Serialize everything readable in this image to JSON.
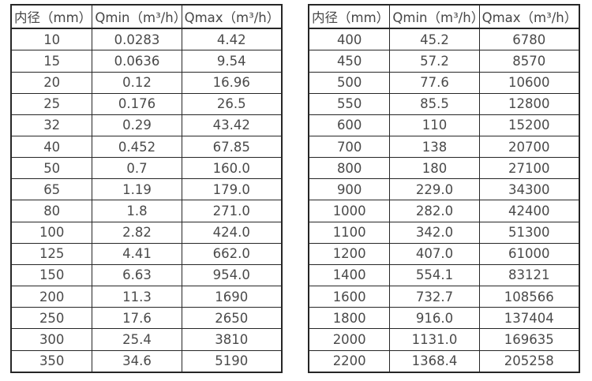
{
  "headers": {
    "diameter": "内径（mm）",
    "qmin": "Qmin（m³/h）",
    "qmax": "Qmax（m³/h）"
  },
  "tables": [
    {
      "name": "small-diameters",
      "rows": [
        [
          "10",
          "0.0283",
          "4.42"
        ],
        [
          "15",
          "0.0636",
          "9.54"
        ],
        [
          "20",
          "0.12",
          "16.96"
        ],
        [
          "25",
          "0.176",
          "26.5"
        ],
        [
          "32",
          "0.29",
          "43.42"
        ],
        [
          "40",
          "0.452",
          "67.85"
        ],
        [
          "50",
          "0.7",
          "160.0"
        ],
        [
          "65",
          "1.19",
          "179.0"
        ],
        [
          "80",
          "1.8",
          "271.0"
        ],
        [
          "100",
          "2.82",
          "424.0"
        ],
        [
          "125",
          "4.41",
          "662.0"
        ],
        [
          "150",
          "6.63",
          "954.0"
        ],
        [
          "200",
          "11.3",
          "1690"
        ],
        [
          "250",
          "17.6",
          "2650"
        ],
        [
          "300",
          "25.4",
          "3810"
        ],
        [
          "350",
          "34.6",
          "5190"
        ]
      ]
    },
    {
      "name": "large-diameters",
      "rows": [
        [
          "400",
          "45.2",
          "6780"
        ],
        [
          "450",
          "57.2",
          "8570"
        ],
        [
          "500",
          "77.6",
          "10600"
        ],
        [
          "550",
          "85.5",
          "12800"
        ],
        [
          "600",
          "110",
          "15200"
        ],
        [
          "700",
          "138",
          "20700"
        ],
        [
          "800",
          "180",
          "27100"
        ],
        [
          "900",
          "229.0",
          "34300"
        ],
        [
          "1000",
          "282.0",
          "42400"
        ],
        [
          "1100",
          "342.0",
          "51300"
        ],
        [
          "1200",
          "407.0",
          "61000"
        ],
        [
          "1400",
          "554.1",
          "83121"
        ],
        [
          "1600",
          "732.7",
          "108566"
        ],
        [
          "1800",
          "916.0",
          "137404"
        ],
        [
          "2000",
          "1131.0",
          "169635"
        ],
        [
          "2200",
          "1368.4",
          "205258"
        ]
      ]
    }
  ]
}
